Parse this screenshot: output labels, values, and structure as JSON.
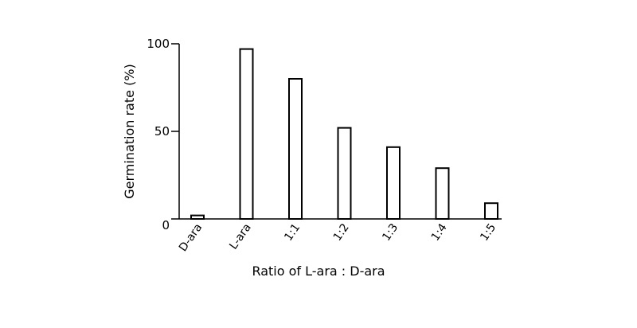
{
  "chart_data": {
    "type": "bar",
    "categories": [
      "D-ara",
      "L-ara",
      "1:1",
      "1:2",
      "1:3",
      "1:4",
      "1:5"
    ],
    "values": [
      2,
      97,
      80,
      52,
      41,
      29,
      9
    ],
    "title": "",
    "xlabel": "Ratio of L-ara : D-ara",
    "ylabel": "Germination rate (%)",
    "ylim": [
      0,
      100
    ],
    "yticks": [
      0,
      50,
      100
    ],
    "grid": false,
    "bar_fill": "#ffffff",
    "bar_stroke": "#000000"
  }
}
